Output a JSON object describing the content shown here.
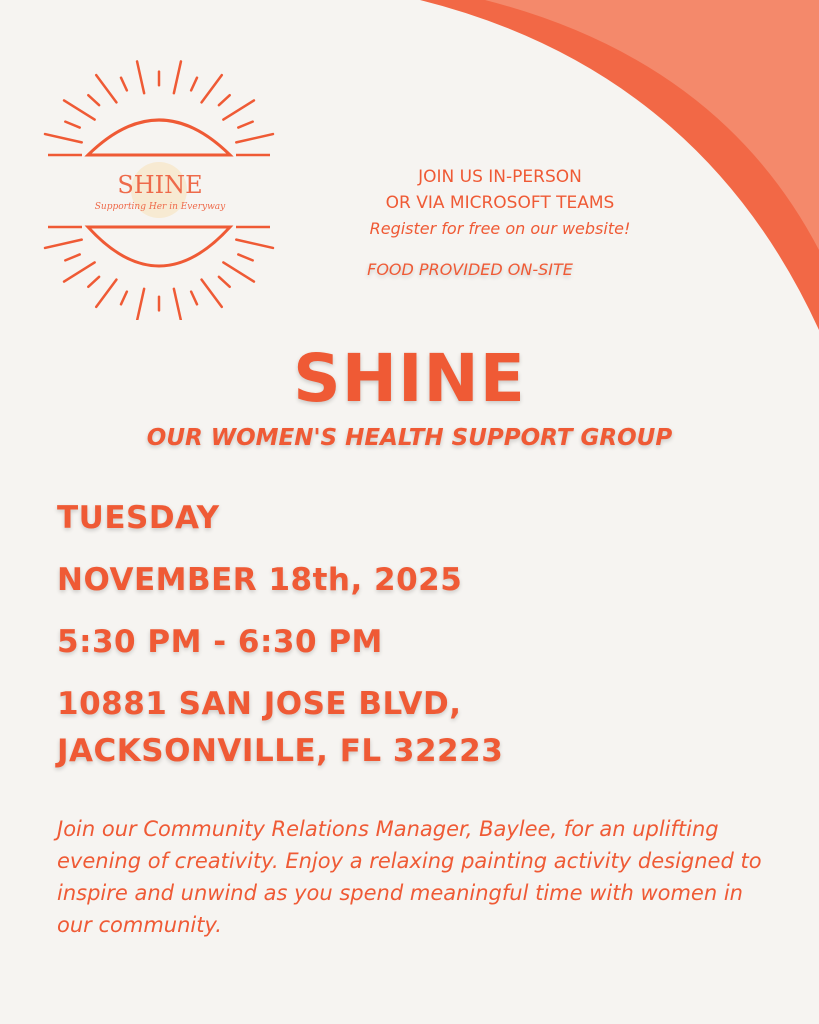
{
  "colors": {
    "accent": "#ef5a35",
    "background": "#f6f4f1",
    "curve_dark": "#f26846",
    "curve_light": "#f4896b"
  },
  "logo": {
    "title": "SHINE",
    "tagline": "Supporting Her in Everyway"
  },
  "info": {
    "line1": "JOIN US IN-PERSON",
    "line2": "OR VIA MICROSOFT TEAMS",
    "register": "Register for free on our website!",
    "food": "FOOD PROVIDED ON-SITE"
  },
  "heading": {
    "title": "SHINE",
    "subtitle": "OUR WOMEN'S HEALTH SUPPORT GROUP"
  },
  "event": {
    "day": "TUESDAY",
    "date": "NOVEMBER 18th, 2025",
    "time": "5:30 PM - 6:30 PM",
    "address_line1": "10881 SAN JOSE BLVD,",
    "address_line2": "JACKSONVILLE, FL 32223"
  },
  "description": "Join our Community Relations Manager, Baylee, for an uplifting evening of creativity. Enjoy a relaxing painting activity designed to inspire and unwind as you spend meaningful time with women in our community."
}
